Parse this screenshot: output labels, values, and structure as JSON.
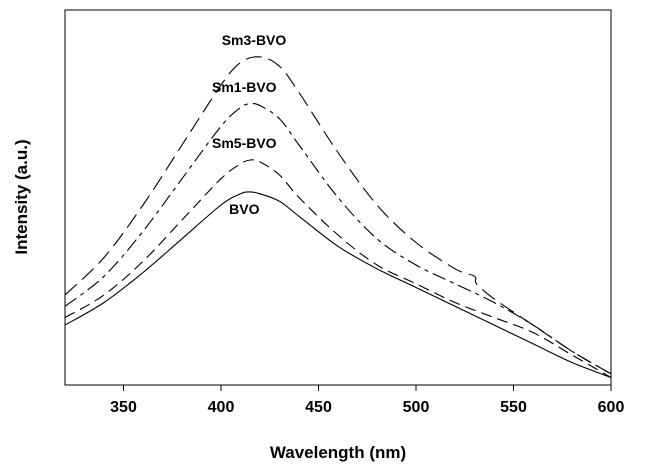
{
  "chart_data": {
    "type": "line",
    "title": "",
    "xlabel": "Wavelength (nm)",
    "ylabel": "Intensity (a.u.)",
    "xlim": [
      320,
      600
    ],
    "ylim": [
      0,
      100
    ],
    "xticks": [
      350,
      400,
      450,
      500,
      550,
      600
    ],
    "x_tick_labels": [
      "350",
      "400",
      "450",
      "500",
      "550",
      "600"
    ],
    "y_tick_labels_visible": false,
    "grid": false,
    "legend": "none (labels placed on curves)",
    "series": [
      {
        "name": "Sm3-BVO",
        "line_style": "long-dash",
        "x": [
          320,
          340,
          360,
          380,
          400,
          410,
          420,
          430,
          440,
          460,
          480,
          500,
          520,
          530,
          531,
          540,
          560,
          580,
          600
        ],
        "y": [
          24,
          34,
          48,
          64,
          80,
          86,
          87.5,
          85,
          78,
          62,
          48,
          38,
          31,
          29,
          27,
          23,
          16,
          9,
          3
        ]
      },
      {
        "name": "Sm1-BVO",
        "line_style": "dash-dot",
        "x": [
          320,
          340,
          360,
          380,
          400,
          410,
          415,
          420,
          430,
          440,
          460,
          480,
          500,
          520,
          540,
          560,
          580,
          600
        ],
        "y": [
          21,
          29,
          41,
          55,
          69,
          74,
          75,
          74.5,
          71,
          64,
          50,
          39,
          32,
          27,
          22,
          16,
          9,
          3
        ]
      },
      {
        "name": "Sm5-BVO",
        "line_style": "medium-dash",
        "x": [
          320,
          340,
          360,
          380,
          400,
          410,
          415,
          420,
          430,
          440,
          460,
          480,
          500,
          520,
          540,
          560,
          580,
          600
        ],
        "y": [
          18,
          24,
          33,
          44,
          55,
          59,
          60,
          59.5,
          56,
          50,
          40,
          32,
          27,
          22,
          18,
          14,
          8,
          2
        ]
      },
      {
        "name": "BVO",
        "line_style": "solid",
        "x": [
          320,
          340,
          360,
          380,
          400,
          410,
          415,
          420,
          430,
          440,
          460,
          480,
          500,
          520,
          540,
          560,
          580,
          600
        ],
        "y": [
          16,
          22,
          30,
          39,
          48,
          51,
          51.5,
          51,
          49,
          45,
          37,
          31,
          26,
          21,
          16,
          11,
          6,
          2
        ]
      }
    ]
  }
}
